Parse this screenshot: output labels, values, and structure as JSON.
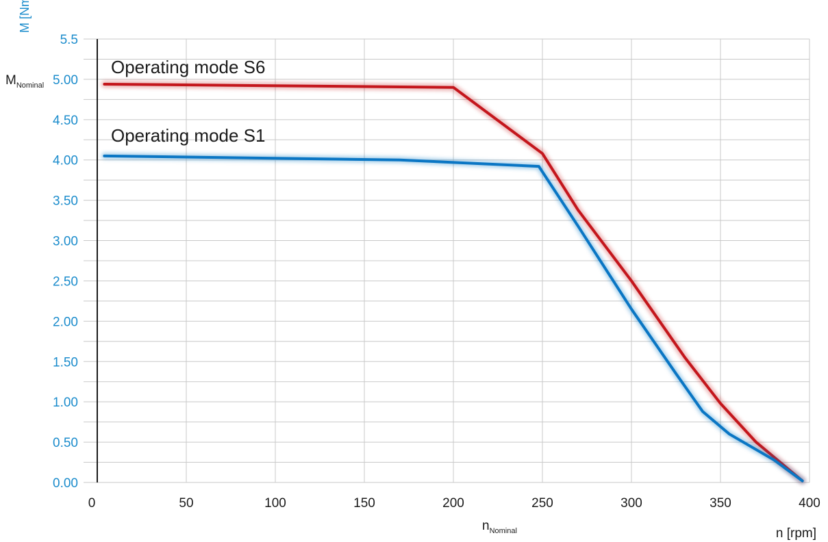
{
  "chart_data": {
    "type": "line",
    "ylabel": "M [Nm]",
    "xlabel": "n [rpm]",
    "x_nominal_label": {
      "main": "n",
      "sub": "Nominal"
    },
    "y_nominal_label": {
      "main": "M",
      "sub": "Nominal"
    },
    "xlim": [
      0,
      400
    ],
    "ylim": [
      0,
      5.5
    ],
    "x_ticks": [
      "0",
      "50",
      "100",
      "150",
      "200",
      "250",
      "300",
      "350",
      "400"
    ],
    "y_ticks": [
      "0.00",
      "0.50",
      "1.00",
      "1.50",
      "2.00",
      "2.50",
      "3.00",
      "3.50",
      "4.00",
      "4.50",
      "5.00",
      "5.5"
    ],
    "y_tick_values": [
      0,
      0.5,
      1.0,
      1.5,
      2.0,
      2.5,
      3.0,
      3.5,
      4.0,
      4.5,
      5.0,
      5.5
    ],
    "grid": true,
    "series": [
      {
        "name": "Operating mode S6",
        "color": "#c4161c",
        "x": [
          4,
          200,
          250,
          270,
          300,
          330,
          350,
          370,
          396
        ],
        "y": [
          4.94,
          4.9,
          4.08,
          3.38,
          2.5,
          1.55,
          0.98,
          0.5,
          0.02
        ]
      },
      {
        "name": "Operating mode S1",
        "color": "#0a76c4",
        "x": [
          4,
          170,
          248,
          270,
          300,
          325,
          340,
          355,
          380,
          396
        ],
        "y": [
          4.05,
          4.0,
          3.92,
          3.18,
          2.15,
          1.35,
          0.88,
          0.6,
          0.28,
          0.02
        ]
      }
    ],
    "colors": {
      "axis_text": "#1b8ccc",
      "grid": "#c8c8c8"
    }
  }
}
